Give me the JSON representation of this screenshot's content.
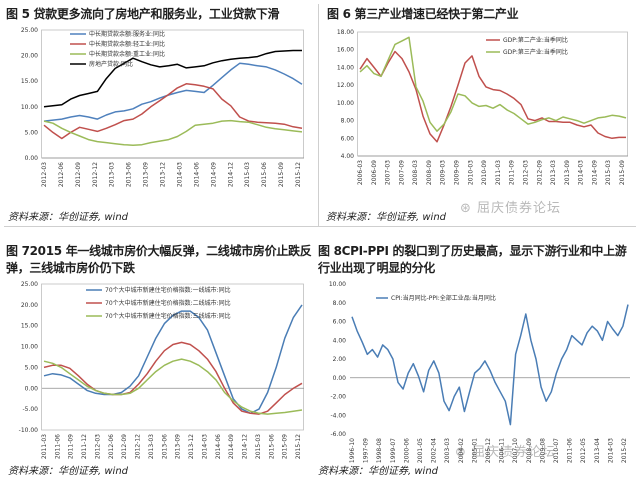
{
  "panels": {
    "p1": {
      "title": "图 5 贷款更多流向了房地产和服务业，工业贷款下滑",
      "source": "资料来源：华创证券, wind"
    },
    "p2": {
      "title": "图 6 第三产业增速已经快于第二产业",
      "source": "资料来源：华创证券, wind"
    },
    "p3": {
      "title": "图 72015 年一线城市房价大幅反弹，二线城市房价止跌反弹，三线城市房价仍下跌",
      "source": "资料来源：华创证券, wind"
    },
    "p4": {
      "title": "图 8CPI-PPI 的裂口到了历史最高，显示下游行业和中上游行业出现了明显的分化",
      "source": "资料来源：华创证券, wind"
    }
  },
  "watermark": {
    "text1": "屈庆债券论坛",
    "text2": "屈庆债券论坛"
  },
  "colors": {
    "blue": "#4f81bd",
    "red": "#c0504d",
    "green": "#9bbb59",
    "black": "#000000",
    "purple": "#8064a2",
    "steel": "#4a7db5"
  },
  "chart_data": [
    {
      "id": "p1",
      "type": "line",
      "ylim": [
        0,
        25
      ],
      "yticks": [
        "25.00",
        "20.00",
        "15.00",
        "10.00",
        "5.00",
        "0.00"
      ],
      "xticks": [
        "2012-03",
        "2012-06",
        "2012-09",
        "2012-12",
        "2013-03",
        "2013-06",
        "2013-09",
        "2013-12",
        "2014-03",
        "2014-06",
        "2014-09",
        "2014-12",
        "2015-03",
        "2015-06",
        "2015-09",
        "2015-12"
      ],
      "series": [
        {
          "name": "中长期贷款余额:服务业:同比",
          "color": "blue",
          "values": [
            7.2,
            7.4,
            7.6,
            8.0,
            8.3,
            8.0,
            7.6,
            8.4,
            9.0,
            9.2,
            9.6,
            10.5,
            11.0,
            11.7,
            12.3,
            12.8,
            13.2,
            13.0,
            12.8,
            14.2,
            15.7,
            17.2,
            18.5,
            18.3,
            18.0,
            17.8,
            17.2,
            16.4,
            15.5,
            14.4
          ]
        },
        {
          "name": "中长期贷款余额:轻工业:同比",
          "color": "red",
          "values": [
            6.4,
            5.0,
            3.8,
            5.0,
            6.0,
            5.6,
            5.2,
            5.8,
            6.5,
            7.3,
            7.6,
            8.6,
            10.0,
            11.2,
            12.4,
            13.7,
            14.5,
            14.3,
            14.0,
            13.5,
            11.5,
            10.2,
            8.0,
            7.2,
            7.0,
            6.9,
            6.8,
            6.6,
            6.1,
            5.8
          ]
        },
        {
          "name": "中长期贷款余额:重工业:同比",
          "color": "green",
          "values": [
            7.2,
            6.8,
            5.8,
            5.0,
            4.3,
            3.6,
            3.2,
            3.0,
            2.8,
            2.6,
            2.5,
            2.6,
            3.0,
            3.3,
            3.6,
            4.2,
            5.2,
            6.4,
            6.6,
            6.8,
            7.2,
            7.3,
            7.1,
            7.0,
            6.5,
            6.0,
            5.7,
            5.5,
            5.3,
            5.1
          ]
        },
        {
          "name": "房地产贷款:同比",
          "color": "black",
          "values": [
            10.0,
            10.2,
            10.4,
            11.5,
            12.2,
            12.6,
            13.0,
            15.5,
            17.5,
            18.5,
            19.5,
            18.8,
            18.2,
            17.8,
            18.0,
            18.3,
            17.6,
            17.8,
            18.0,
            18.6,
            19.0,
            19.3,
            19.5,
            19.6,
            19.8,
            20.4,
            20.8,
            20.9,
            21.0,
            21.0
          ]
        }
      ]
    },
    {
      "id": "p2",
      "type": "line",
      "ylim": [
        4,
        18
      ],
      "yticks": [
        "18.00",
        "16.00",
        "14.00",
        "12.00",
        "10.00",
        "8.00",
        "6.00",
        "4.00"
      ],
      "xticks": [
        "2006-03",
        "2006-09",
        "2007-03",
        "2007-09",
        "2008-03",
        "2008-09",
        "2009-03",
        "2009-09",
        "2010-03",
        "2010-09",
        "2011-03",
        "2011-09",
        "2012-03",
        "2012-09",
        "2013-03",
        "2013-09",
        "2014-03",
        "2014-09",
        "2015-03",
        "2015-09"
      ],
      "series": [
        {
          "name": "GDP:第二产业:当季同比",
          "color": "red",
          "values": [
            13.8,
            15.0,
            14.0,
            13.0,
            14.5,
            15.8,
            15.0,
            13.5,
            11.5,
            8.5,
            6.5,
            5.6,
            7.5,
            9.6,
            12.0,
            14.5,
            15.3,
            13.0,
            11.8,
            11.5,
            11.4,
            11.0,
            10.5,
            9.8,
            8.2,
            8.0,
            8.3,
            7.9,
            7.9,
            7.8,
            7.8,
            7.5,
            7.3,
            7.5,
            6.6,
            6.2,
            6.0,
            6.1,
            6.1
          ]
        },
        {
          "name": "GDP:第三产业:当季同比",
          "color": "green",
          "values": [
            13.5,
            14.2,
            13.3,
            13.0,
            14.8,
            16.6,
            17.0,
            17.4,
            11.8,
            10.2,
            7.8,
            6.8,
            7.6,
            9.0,
            11.0,
            10.8,
            10.0,
            9.6,
            9.7,
            9.4,
            9.8,
            9.2,
            8.8,
            8.2,
            7.6,
            7.8,
            8.1,
            8.3,
            8.0,
            8.4,
            8.2,
            8.0,
            7.7,
            8.0,
            8.3,
            8.4,
            8.6,
            8.5,
            8.3
          ]
        }
      ]
    },
    {
      "id": "p3",
      "type": "line",
      "ylim": [
        -10,
        25
      ],
      "yticks": [
        "25.00",
        "20.00",
        "15.00",
        "10.00",
        "5.00",
        "0.00",
        "-5.00",
        "-10.00"
      ],
      "xticks": [
        "2011-03",
        "2011-06",
        "2011-09",
        "2011-12",
        "2012-03",
        "2012-06",
        "2012-09",
        "2012-12",
        "2013-03",
        "2013-06",
        "2013-09",
        "2013-12",
        "2014-03",
        "2014-06",
        "2014-09",
        "2014-12",
        "2015-03",
        "2015-06",
        "2015-09",
        "2015-12"
      ],
      "series": [
        {
          "name": "70个大中城市新建住宅价格指数:一线城市:同比",
          "color": "steel",
          "values": [
            3.0,
            3.5,
            3.2,
            2.5,
            1.0,
            -0.5,
            -1.2,
            -1.5,
            -1.5,
            -1.0,
            0.5,
            3.0,
            7.5,
            12.0,
            15.5,
            17.5,
            18.5,
            18.5,
            17.0,
            14.0,
            8.5,
            3.0,
            -2.5,
            -5.0,
            -6.0,
            -5.0,
            -1.0,
            5.0,
            12.0,
            17.0,
            20.0
          ]
        },
        {
          "name": "70个大中城市新建住宅价格指数:二线城市:同比",
          "color": "red",
          "values": [
            5.0,
            5.5,
            5.5,
            4.8,
            3.0,
            1.0,
            -0.5,
            -1.2,
            -1.5,
            -1.5,
            -1.0,
            1.0,
            3.5,
            6.5,
            9.0,
            10.5,
            11.0,
            10.5,
            9.0,
            7.0,
            4.0,
            0.0,
            -3.5,
            -5.5,
            -6.0,
            -6.2,
            -5.5,
            -3.5,
            -1.5,
            0.0,
            1.2
          ]
        },
        {
          "name": "70个大中城市新建住宅价格指数:三线城市:同比",
          "color": "green",
          "values": [
            6.5,
            6.0,
            5.0,
            3.5,
            2.0,
            0.5,
            -0.5,
            -1.2,
            -1.5,
            -1.5,
            -1.2,
            0.0,
            2.0,
            4.0,
            5.5,
            6.5,
            7.0,
            6.5,
            5.5,
            4.0,
            2.0,
            -1.0,
            -3.0,
            -4.5,
            -5.5,
            -6.0,
            -6.2,
            -6.0,
            -5.8,
            -5.5,
            -5.2
          ]
        }
      ]
    },
    {
      "id": "p4",
      "type": "line",
      "ylim": [
        -6,
        10
      ],
      "yticks": [
        "10.00",
        "8.00",
        "6.00",
        "4.00",
        "2.00",
        "0.00",
        "-2.00",
        "-4.00",
        "-6.00"
      ],
      "xticks": [
        "1996-10",
        "1997-09",
        "1998-08",
        "1999-07",
        "2000-06",
        "2001-05",
        "2002-04",
        "2003-03",
        "2004-02",
        "2005-01",
        "2005-12",
        "2006-11",
        "2007-10",
        "2008-09",
        "2009-08",
        "2010-07",
        "2011-06",
        "2012-05",
        "2013-04",
        "2014-03",
        "2015-02"
      ],
      "series": [
        {
          "name": "CPI:当月同比-PPI:全部工业品:当月同比",
          "color": "steel",
          "values": [
            6.5,
            5.0,
            3.8,
            2.5,
            3.0,
            2.2,
            3.5,
            3.0,
            2.0,
            -0.5,
            -1.2,
            0.5,
            1.5,
            0.2,
            -1.5,
            0.8,
            1.8,
            0.5,
            -2.5,
            -3.5,
            -2.0,
            -1.0,
            -3.6,
            -1.5,
            0.5,
            1.0,
            1.8,
            0.8,
            -0.5,
            -1.5,
            -2.5,
            -5.0,
            2.5,
            4.5,
            6.8,
            4.0,
            2.0,
            -1.0,
            -2.5,
            -1.5,
            0.5,
            2.0,
            3.0,
            4.5,
            4.0,
            3.5,
            4.8,
            5.5,
            5.0,
            4.0,
            6.0,
            5.2,
            4.5,
            5.5,
            7.8
          ]
        }
      ]
    }
  ]
}
